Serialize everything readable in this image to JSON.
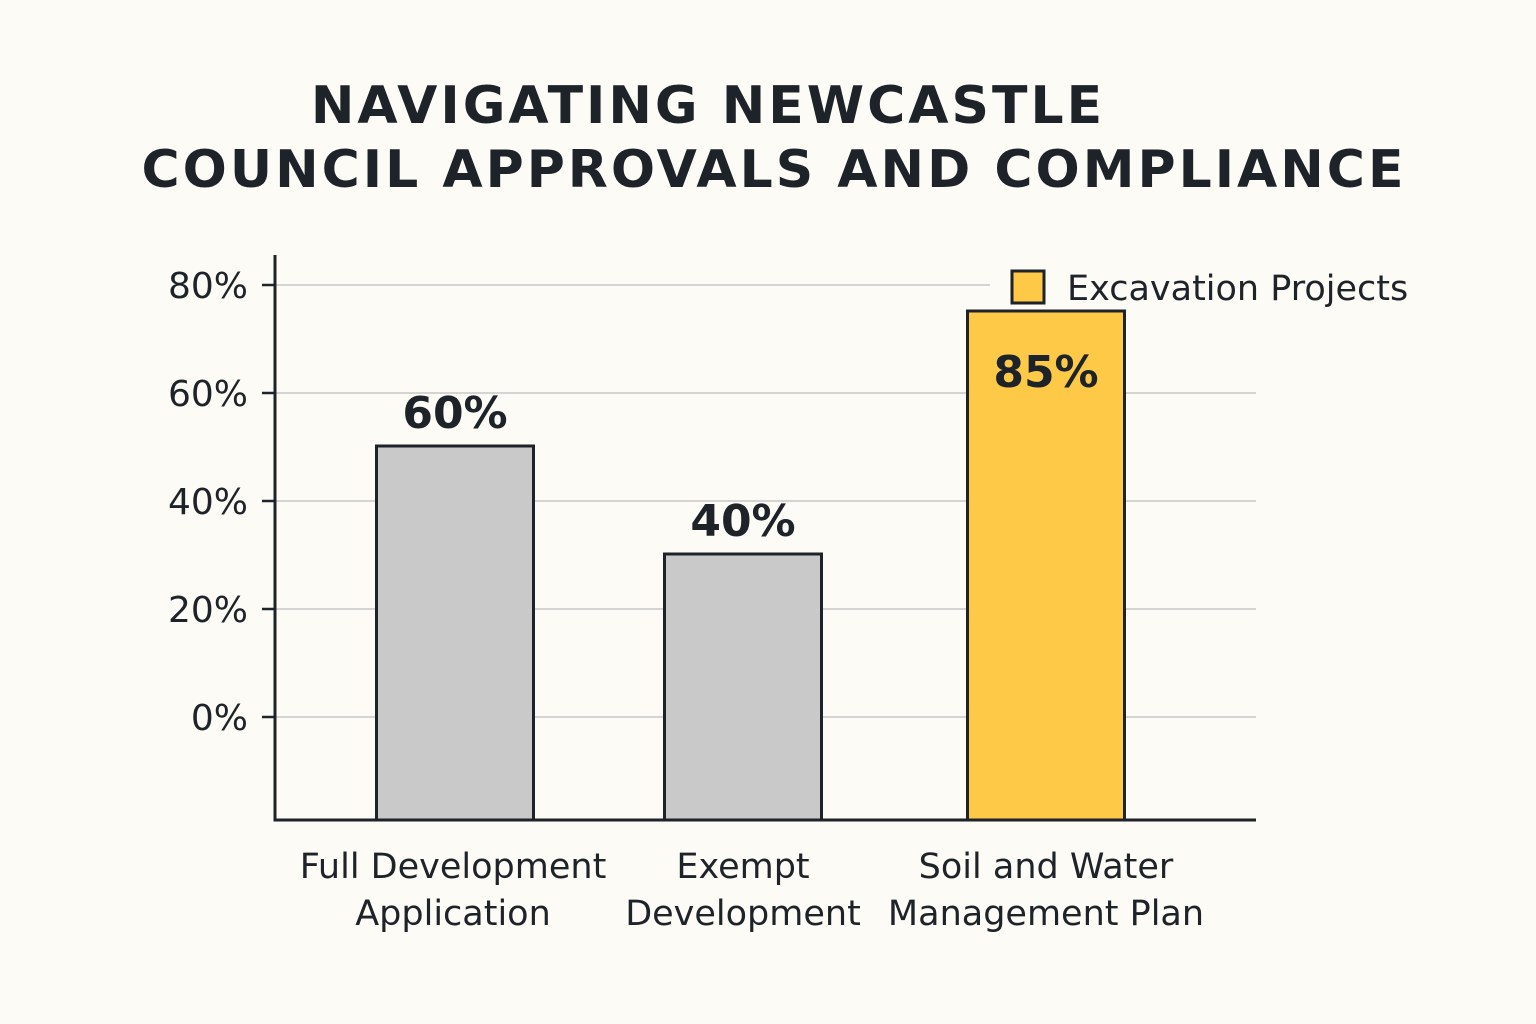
{
  "chart_data": {
    "type": "bar",
    "title_lines": [
      "NAVIGATING NEWCASTLE",
      "COUNCIL APPROVALS AND COMPLIANCE"
    ],
    "categories": [
      [
        "Full Development",
        "Application"
      ],
      [
        "Exempt",
        "Development"
      ],
      [
        "Soil and Water",
        "Management Plan"
      ]
    ],
    "values": [
      60,
      40,
      85
    ],
    "data_labels": [
      "60%",
      "40%",
      "85%"
    ],
    "highlight": [
      false,
      false,
      true
    ],
    "yticks": [
      0,
      20,
      40,
      60,
      80
    ],
    "ytick_labels": [
      "0%",
      "20%",
      "40%",
      "60%",
      "80%"
    ],
    "ylim": [
      0,
      80
    ],
    "grid": true,
    "legend": {
      "label": "Excavation Projects",
      "placement": "top-right"
    },
    "colors": {
      "default": "#c9c9c9",
      "highlight": "#fdc946",
      "outline": "#1d2329",
      "grid": "#c8c8c8",
      "background": "#fdfbf5"
    }
  }
}
